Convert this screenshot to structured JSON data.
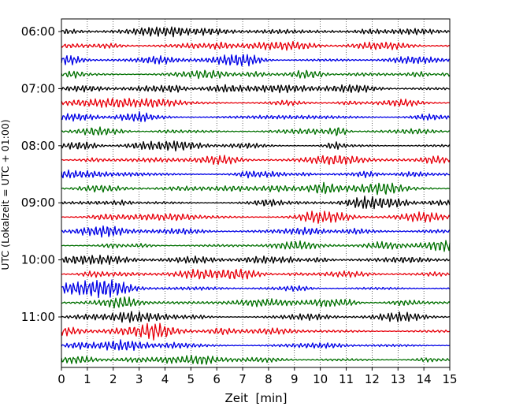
{
  "chart_data": {
    "type": "line",
    "title": "",
    "xlabel": "Zeit  [min]",
    "ylabel": "UTC (Lokalzeit = UTC + 01:00)",
    "xlim": [
      0,
      15
    ],
    "x_ticks": [
      "0",
      "1",
      "2",
      "3",
      "4",
      "5",
      "6",
      "7",
      "8",
      "9",
      "10",
      "11",
      "12",
      "13",
      "14",
      "15"
    ],
    "y_ticks": [
      "06:00",
      "07:00",
      "08:00",
      "09:00",
      "10:00",
      "11:00"
    ],
    "y_tick_rows": [
      0,
      4,
      8,
      12,
      16,
      20
    ],
    "vertical_grid": true,
    "row_minutes": 15,
    "rows": [
      "06:00",
      "06:15",
      "06:30",
      "06:45",
      "07:00",
      "07:15",
      "07:30",
      "07:45",
      "08:00",
      "08:15",
      "08:30",
      "08:45",
      "09:00",
      "09:15",
      "09:30",
      "09:45",
      "10:00",
      "10:15",
      "10:30",
      "10:45",
      "11:00",
      "11:15",
      "11:30",
      "11:45"
    ],
    "series_colors": [
      "#000000",
      "#e8000b",
      "#0000e6",
      "#007000"
    ]
  }
}
